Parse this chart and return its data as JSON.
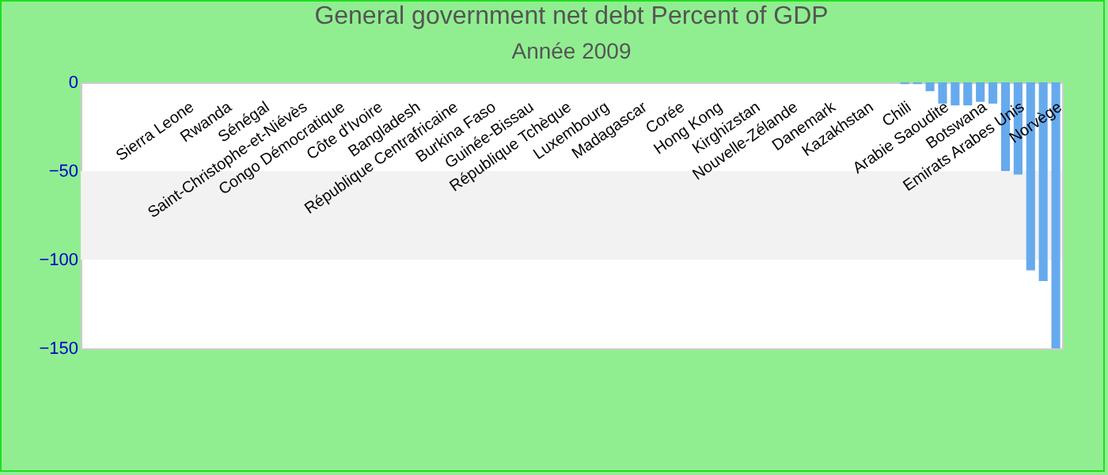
{
  "chart_data": {
    "type": "bar",
    "title": "General government net debt  Percent of GDP",
    "subtitle": "Année 2009",
    "categories": [
      null,
      null,
      null,
      null,
      null,
      null,
      null,
      null,
      "Sierra Leone",
      null,
      null,
      "Rwanda",
      null,
      null,
      "Sénégal",
      null,
      null,
      "Saint-Christophe-et-Niévès",
      null,
      null,
      "Congo Démocratique",
      null,
      null,
      "Côte d'Ivoire",
      null,
      null,
      "Bangladesh",
      null,
      null,
      "République Centrafricaine",
      null,
      null,
      "Burkina Faso",
      null,
      null,
      "Guinée-Bissau",
      null,
      null,
      "République Tchèque",
      null,
      null,
      "Luxembourg",
      null,
      null,
      "Madagascar",
      null,
      null,
      "Corée",
      null,
      null,
      "Hong Kong",
      null,
      null,
      "Kirghizstan",
      null,
      null,
      "Nouvelle-Zélande",
      null,
      null,
      "Danemark",
      null,
      null,
      "Kazakhstan",
      null,
      null,
      "Chili",
      null,
      null,
      "Arabie Saoudite",
      null,
      null,
      "Botswana",
      null,
      null,
      "Emirats Arabes Unis",
      null,
      null,
      "Norvège"
    ],
    "values": [
      null,
      null,
      null,
      null,
      null,
      null,
      null,
      null,
      null,
      null,
      null,
      null,
      null,
      null,
      null,
      null,
      null,
      null,
      null,
      null,
      null,
      null,
      null,
      null,
      null,
      null,
      null,
      null,
      null,
      null,
      null,
      null,
      null,
      null,
      null,
      null,
      null,
      null,
      null,
      null,
      null,
      null,
      null,
      null,
      null,
      null,
      null,
      null,
      null,
      null,
      null,
      null,
      null,
      null,
      null,
      null,
      null,
      null,
      null,
      null,
      null,
      null,
      null,
      null,
      null,
      -1,
      -1,
      -5,
      -12,
      -13,
      -13,
      -11,
      -12,
      -50,
      -52,
      -106,
      -112,
      -150
    ],
    "color": "#66aaee",
    "ylim": [
      -150,
      0
    ],
    "yticks": [
      0,
      -50,
      -100,
      -150
    ],
    "bands": [
      {
        "axis": "y",
        "from": -50,
        "to": -100,
        "color": "#f2f2f2"
      }
    ]
  }
}
